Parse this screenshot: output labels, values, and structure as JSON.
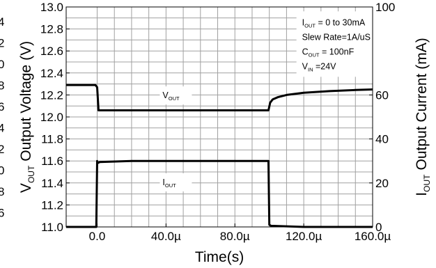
{
  "chart_data": {
    "type": "line",
    "xlabel": "Time(s)",
    "ylabel_left": {
      "main": "Output Voltage (V)",
      "symbol": "V",
      "subscript": "OUT"
    },
    "ylabel_right": {
      "main": "Output Current (mA)",
      "symbol": "I",
      "subscript": "OUT"
    },
    "x_ticks": [
      "0.0",
      "40.0µ",
      "80.0µ",
      "120.0µ",
      "160.0µ"
    ],
    "x_tick_values": [
      0,
      40,
      80,
      120,
      160
    ],
    "x_unit": "µs",
    "xlim": [
      -18,
      160
    ],
    "y_left_ticks": [
      "11.0",
      "11.2",
      "11.4",
      "11.6",
      "11.8",
      "12.0",
      "12.2",
      "12.4",
      "12.6",
      "12.8",
      "13.0"
    ],
    "ylim_left": [
      11.0,
      13.0
    ],
    "y_right_ticks": [
      "0",
      "20",
      "40",
      "60",
      "80",
      "100"
    ],
    "ylim_right": [
      0,
      100
    ],
    "left_edge_cutoff_text": [
      "4",
      "2",
      "0",
      "8",
      "6",
      "4",
      "2",
      "0",
      "8",
      "6"
    ],
    "grid": true,
    "annotation": {
      "line1": {
        "main": "I",
        "sub": "OUT",
        "rest": " = 0 to 30mA"
      },
      "line2": "Slew Rate=1A/uS",
      "line3": {
        "main": "C",
        "sub": "OUT",
        "rest": " = 100nF"
      },
      "line4": {
        "main": "V",
        "sub": "IN",
        "rest": " =24V"
      }
    },
    "series": [
      {
        "name": {
          "main": "V",
          "sub": "OUT"
        },
        "axis": "left",
        "x": [
          -18,
          -1,
          0,
          0.8,
          20,
          50,
          80,
          99.5,
          100.5,
          102,
          105,
          110,
          120,
          135,
          150,
          160
        ],
        "y": [
          12.29,
          12.29,
          12.27,
          12.06,
          12.06,
          12.06,
          12.06,
          12.06,
          12.13,
          12.16,
          12.18,
          12.2,
          12.22,
          12.235,
          12.245,
          12.25
        ]
      },
      {
        "name": {
          "main": "I",
          "sub": "OUT"
        },
        "axis": "left",
        "x": [
          -18,
          -0.5,
          0,
          0.2,
          1.5,
          20,
          50,
          80,
          99.5,
          100,
          101,
          120,
          160
        ],
        "y": [
          11.0,
          11.0,
          11.6,
          11.58,
          11.59,
          11.6,
          11.6,
          11.6,
          11.6,
          11.02,
          11.01,
          11.0,
          11.0
        ]
      }
    ]
  }
}
